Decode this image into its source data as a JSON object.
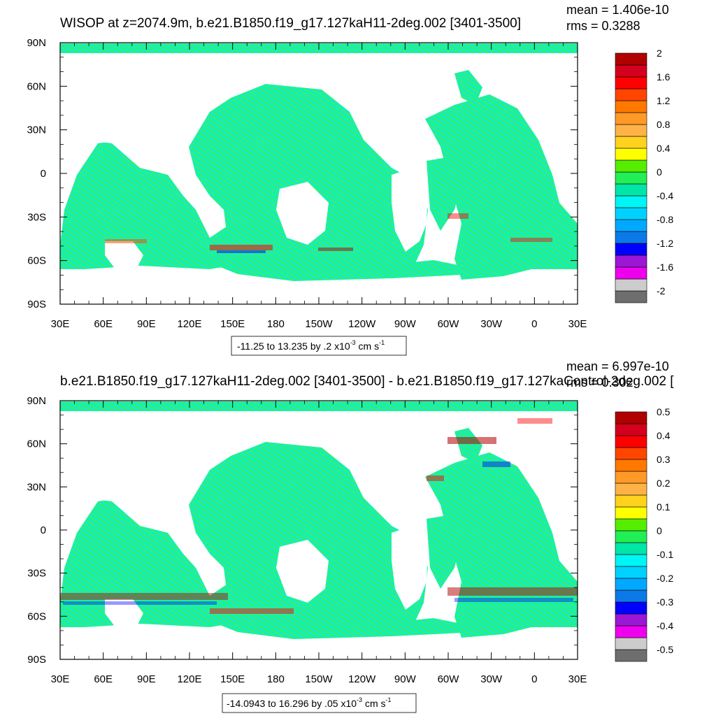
{
  "chart_data": [
    {
      "type": "heatmap",
      "title": "WISOP at z=2074.9m, b.e21.B1850.f19_g17.127kaH11-2deg.002 [3401-3500]",
      "stats": {
        "mean": "mean = 1.406e-10",
        "rms": "rms = 0.3288"
      },
      "xticks": [
        "30E",
        "60E",
        "90E",
        "120E",
        "150E",
        "180",
        "150W",
        "120W",
        "90W",
        "60W",
        "30W",
        "0",
        "30E"
      ],
      "yticks": [
        "90N",
        "60N",
        "30N",
        "0",
        "30S",
        "60S",
        "90S"
      ],
      "xlim": [
        30,
        390
      ],
      "ylim": [
        -90,
        90
      ],
      "range_label": {
        "prefix": "-11.25 to 13.235 by .2 x10",
        "exp": "-3",
        "unit": " cm s",
        "unit_exp": "-1"
      },
      "colorbar": {
        "colors": [
          "#6e6e6e",
          "#cccccc",
          "#ee00ee",
          "#9a17d6",
          "#0000ff",
          "#0b7ae8",
          "#00a8ff",
          "#00d2ff",
          "#00f5f5",
          "#00e5a8",
          "#22ee55",
          "#55ee00",
          "#ffff00",
          "#ffd21e",
          "#ffb347",
          "#ff9a28",
          "#ff7800",
          "#ff4500",
          "#ff0000",
          "#d4001e",
          "#b00000"
        ],
        "labels": [
          "2",
          "1.6",
          "1.2",
          "0.8",
          "0.4",
          "0",
          "-0.4",
          "-0.8",
          "-1.2",
          "-1.6",
          "-2"
        ]
      }
    },
    {
      "type": "heatmap",
      "title": "b.e21.B1850.f19_g17.127kaH11-2deg.002 [3401-3500] - b.e21.B1850.f19_g17.127kaControl-2deg.002 [",
      "stats": {
        "mean": "mean = 6.997e-10",
        "rms": "rms = 0.302"
      },
      "xticks": [
        "30E",
        "60E",
        "90E",
        "120E",
        "150E",
        "180",
        "150W",
        "120W",
        "90W",
        "60W",
        "30W",
        "0",
        "30E"
      ],
      "yticks": [
        "90N",
        "60N",
        "30N",
        "0",
        "30S",
        "60S",
        "90S"
      ],
      "xlim": [
        30,
        390
      ],
      "ylim": [
        -90,
        90
      ],
      "range_label": {
        "prefix": "-14.0943 to 16.296 by .05 x10",
        "exp": "-3",
        "unit": " cm s",
        "unit_exp": "-1"
      },
      "colorbar": {
        "colors": [
          "#6e6e6e",
          "#cccccc",
          "#ee00ee",
          "#9a17d6",
          "#0000ff",
          "#0b7ae8",
          "#00a8ff",
          "#00d2ff",
          "#00f5f5",
          "#00e5a8",
          "#22ee55",
          "#55ee00",
          "#ffff00",
          "#ffd21e",
          "#ffb347",
          "#ff9a28",
          "#ff7800",
          "#ff4500",
          "#ff0000",
          "#d4001e",
          "#b00000"
        ],
        "labels": [
          "0.5",
          "0.4",
          "0.3",
          "0.2",
          "0.1",
          "0",
          "-0.1",
          "-0.2",
          "-0.3",
          "-0.4",
          "-0.5"
        ]
      }
    }
  ]
}
